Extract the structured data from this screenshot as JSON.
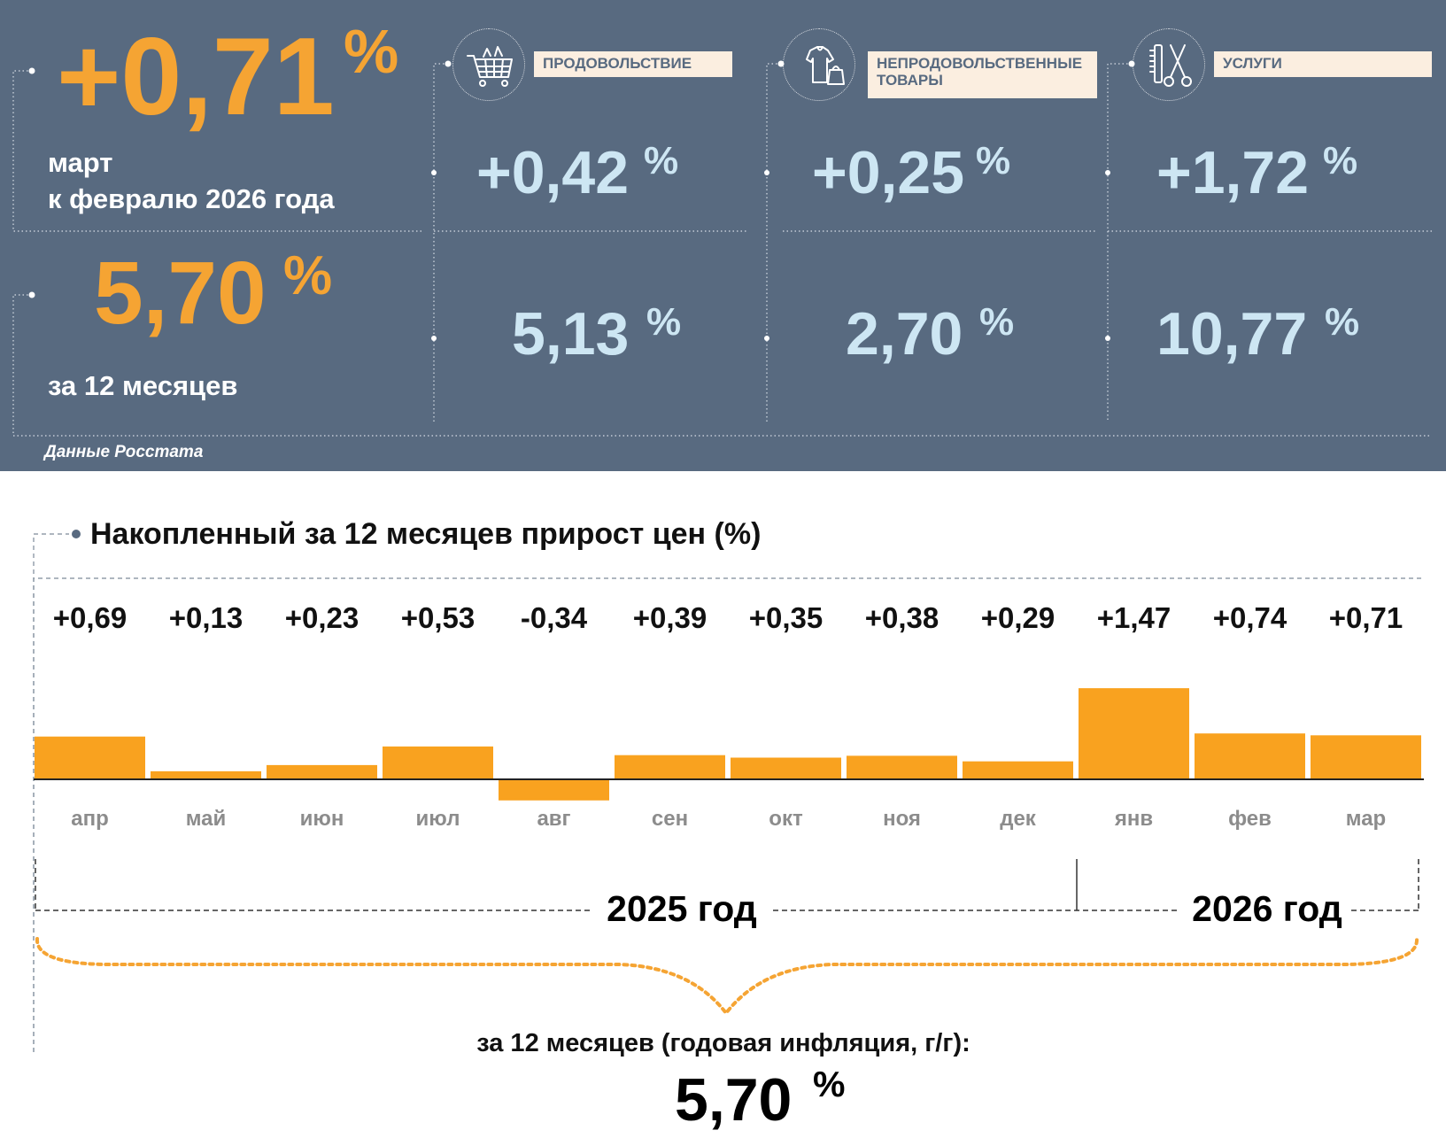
{
  "headline": {
    "monthly_value": "+0,71",
    "monthly_unit": "%",
    "monthly_label_line1": "март",
    "monthly_label_line2": "к февралю 2026 года",
    "annual_value": "5,70",
    "annual_unit": "%",
    "annual_label": "за 12 месяцев",
    "source": "Данные Росстата"
  },
  "categories": [
    {
      "name": "ПРОДОВОЛЬСТВИЕ",
      "icon": "shopping-cart-icon",
      "monthly": "+0,42",
      "annual": "5,13",
      "unit": "%"
    },
    {
      "name_line1": "НЕПРОДОВОЛЬСТВЕННЫЕ",
      "name_line2": "ТОВАРЫ",
      "icon": "clothing-bag-icon",
      "monthly": "+0,25",
      "annual": "2,70",
      "unit": "%"
    },
    {
      "name": "УСЛУГИ",
      "icon": "comb-scissors-icon",
      "monthly": "+1,72",
      "annual": "10,77",
      "unit": "%"
    }
  ],
  "chart_title": "Накопленный за 12 месяцев прирост цен (%)",
  "chart_data": {
    "type": "bar",
    "categories": [
      "апр",
      "май",
      "июн",
      "июл",
      "авг",
      "сен",
      "окт",
      "ноя",
      "дек",
      "янв",
      "фев",
      "мар"
    ],
    "values": [
      0.69,
      0.13,
      0.23,
      0.53,
      -0.34,
      0.39,
      0.35,
      0.38,
      0.29,
      1.47,
      0.74,
      0.71
    ],
    "value_labels": [
      "+0,69",
      "+0,13",
      "+0,23",
      "+0,53",
      "-0,34",
      "+0,39",
      "+0,35",
      "+0,38",
      "+0,29",
      "+1,47",
      "+0,74",
      "+0,71"
    ],
    "bar_color": "#f9a21f"
  },
  "years": {
    "first": "2025 год",
    "second": "2026 год"
  },
  "summary": {
    "label": "за 12 месяцев (годовая инфляция, г/г):",
    "value": "5,70",
    "unit": "%"
  },
  "colors": {
    "panel": "#586a80",
    "accent": "#f5a433",
    "light_value": "#cde6f3",
    "bar": "#f9a21f"
  }
}
